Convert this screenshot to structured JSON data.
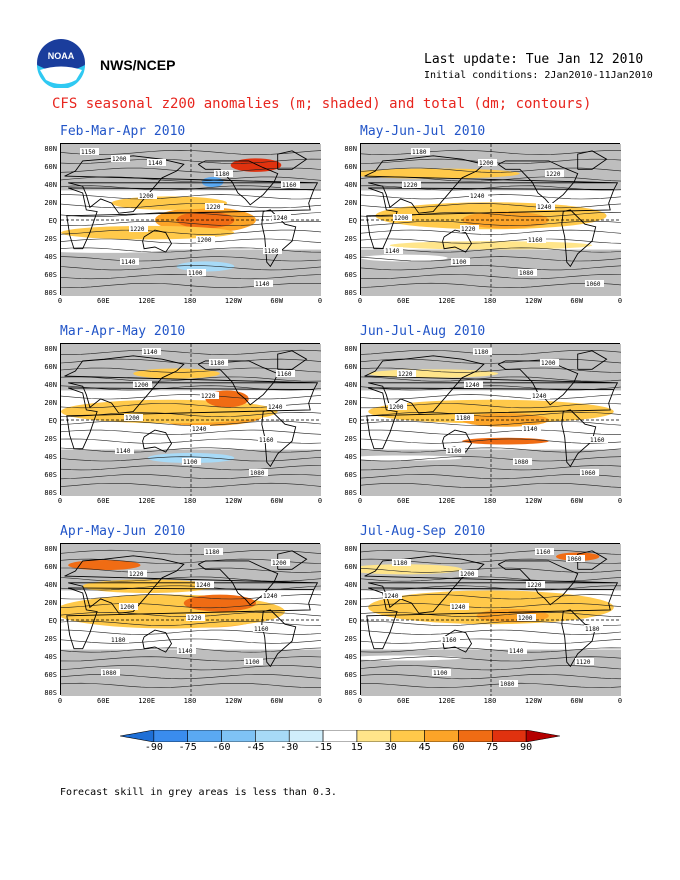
{
  "header": {
    "org": "NWS/NCEP",
    "last_update": "Last update: Tue Jan 12 2010",
    "initial_conditions": "Initial conditions: 2Jan2010-11Jan2010",
    "title": "CFS seasonal z200 anomalies (m; shaded) and total (dm; contours)"
  },
  "logo": {
    "icon": "noaa-logo"
  },
  "axes": {
    "lat_labels": [
      "80N",
      "60N",
      "40N",
      "20N",
      "EQ",
      "20S",
      "40S",
      "60S",
      "80S"
    ],
    "lon_labels": [
      "0",
      "60E",
      "120E",
      "180",
      "120W",
      "60W",
      "0"
    ]
  },
  "panels": [
    {
      "title": "Feb-Mar-Apr 2010",
      "contour_labels": [
        "1150",
        "1140",
        "1180",
        "1160",
        "1200",
        "1220",
        "1240",
        "1220",
        "1200",
        "1160",
        "1140",
        "1100",
        "1140",
        "1200"
      ]
    },
    {
      "title": "May-Jun-Jul 2010",
      "contour_labels": [
        "1180",
        "1200",
        "1220",
        "1220",
        "1240",
        "1240",
        "1200",
        "1220",
        "1160",
        "1140",
        "1100",
        "1080",
        "1060"
      ]
    },
    {
      "title": "Mar-Apr-May 2010",
      "contour_labels": [
        "1140",
        "1180",
        "1160",
        "1200",
        "1220",
        "1240",
        "1200",
        "1240",
        "1160",
        "1140",
        "1100",
        "1080"
      ]
    },
    {
      "title": "Jun-Jul-Aug 2010",
      "contour_labels": [
        "1180",
        "1200",
        "1220",
        "1240",
        "1240",
        "1200",
        "1180",
        "1140",
        "1160",
        "1100",
        "1080",
        "1060"
      ]
    },
    {
      "title": "Apr-May-Jun 2010",
      "contour_labels": [
        "1180",
        "1200",
        "1220",
        "1240",
        "1240",
        "1200",
        "1220",
        "1160",
        "1180",
        "1140",
        "1100",
        "1080"
      ]
    },
    {
      "title": "Jul-Aug-Sep 2010",
      "contour_labels": [
        "1160",
        "1180",
        "1200",
        "1220",
        "1240",
        "1240",
        "1200",
        "1180",
        "1160",
        "1140",
        "1120",
        "1100",
        "1080",
        "1060"
      ]
    }
  ],
  "colorbar": {
    "labels": [
      "-90",
      "-75",
      "-60",
      "-45",
      "-30",
      "-15",
      "15",
      "30",
      "45",
      "60",
      "75",
      "90"
    ],
    "colors": [
      "#1e6fd6",
      "#3a8cee",
      "#5aa9f2",
      "#7fc3f5",
      "#a7daf7",
      "#d0eefb",
      "#ffffff",
      "#ffe58a",
      "#ffc94a",
      "#fca428",
      "#f06c14",
      "#e0320f",
      "#b40000"
    ]
  },
  "footnote": "Forecast skill in grey areas is less than 0.3."
}
